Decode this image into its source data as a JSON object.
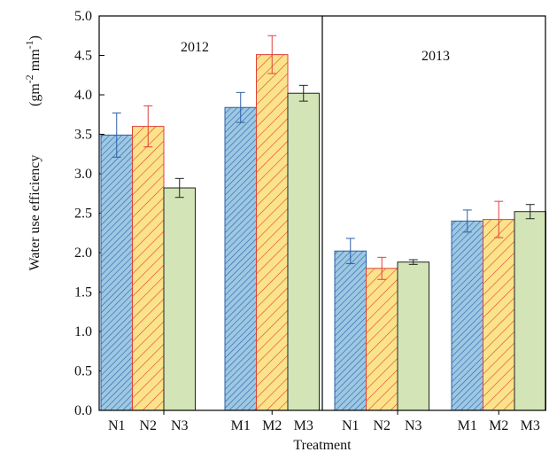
{
  "chart_data": {
    "type": "bar",
    "y_label": "Water use efficiency",
    "y_unit": [
      "(g",
      "m",
      "-2",
      " mm",
      "-1",
      ")"
    ],
    "x_label": "Treatment",
    "ylim": [
      0,
      5
    ],
    "yticks": [
      {
        "value": 0,
        "label": "0.0"
      },
      {
        "value": 0.5,
        "label": "0.5"
      },
      {
        "value": 1,
        "label": "1.0"
      },
      {
        "value": 1.5,
        "label": "1.5"
      },
      {
        "value": 2,
        "label": "2.0"
      },
      {
        "value": 2.5,
        "label": "2.5"
      },
      {
        "value": 3,
        "label": "3.0"
      },
      {
        "value": 3.5,
        "label": "3.5"
      },
      {
        "value": 4,
        "label": "4.0"
      },
      {
        "value": 4.5,
        "label": "4.5"
      },
      {
        "value": 5,
        "label": "5.0"
      }
    ],
    "bar_styles": [
      {
        "fill": "#9dc8e3",
        "hatch": "#2b5fa6",
        "edge": "#2b5fa6"
      },
      {
        "fill": "#fbe38a",
        "hatch": "#e0403a",
        "edge": "#e0403a"
      },
      {
        "fill": "#d3e4b6",
        "hatch": null,
        "edge": "#222222"
      }
    ],
    "panels": [
      {
        "title": "2012",
        "categories": [
          "N1",
          "N2",
          "N3",
          "M1",
          "M2",
          "M3"
        ],
        "values": [
          3.49,
          3.6,
          2.82,
          3.84,
          4.51,
          4.02
        ],
        "errors": [
          0.28,
          0.26,
          0.12,
          0.19,
          0.24,
          0.1
        ]
      },
      {
        "title": "2013",
        "categories": [
          "N1",
          "N2",
          "N3",
          "M1",
          "M2",
          "M3"
        ],
        "values": [
          2.02,
          1.8,
          1.88,
          2.4,
          2.42,
          2.52
        ],
        "errors": [
          0.16,
          0.14,
          0.03,
          0.14,
          0.23,
          0.09
        ]
      }
    ]
  }
}
